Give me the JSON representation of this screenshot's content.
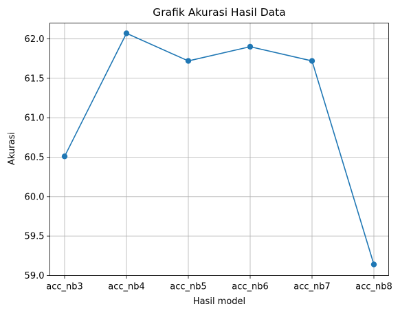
{
  "chart_data": {
    "type": "line",
    "title": "Grafik Akurasi Hasil Data",
    "xlabel": "Hasil model",
    "ylabel": "Akurasi",
    "categories": [
      "acc_nb3",
      "acc_nb4",
      "acc_nb5",
      "acc_nb6",
      "acc_nb7",
      "acc_nb8"
    ],
    "series": [
      {
        "values": [
          60.51,
          62.07,
          61.72,
          61.9,
          61.72,
          59.14
        ]
      }
    ],
    "ylim": [
      59.0,
      62.2
    ],
    "yticks": [
      "59.0",
      "59.5",
      "60.0",
      "60.5",
      "61.0",
      "61.5",
      "62.0"
    ],
    "grid": true,
    "line_color": "#1f77b4"
  }
}
